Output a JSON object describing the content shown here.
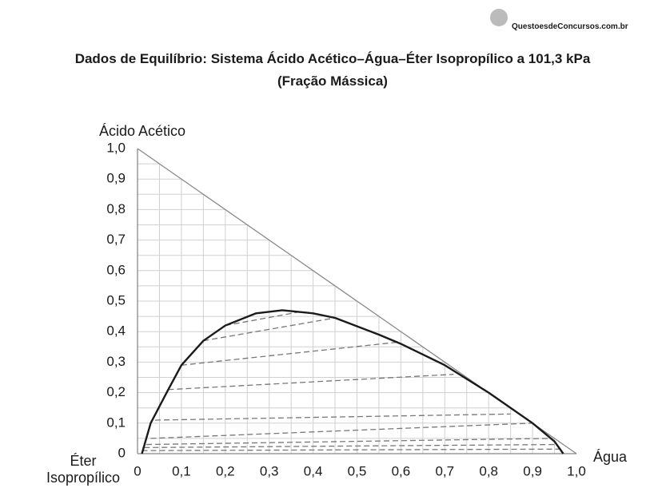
{
  "watermark": "QuestoesdeConcursos.com.br",
  "chart_data": {
    "type": "ternary",
    "title": "Dados de Equilíbrio: Sistema Ácido Acético–Água–Éter Isopropílico a 101,3 kPa",
    "subtitle": "(Fração Mássica)",
    "ylabel": "Ácido Acético",
    "xlabel": "Água",
    "origin_label": [
      "Éter",
      "Isopropílico"
    ],
    "xlim": [
      0,
      1
    ],
    "ylim": [
      0,
      1
    ],
    "xticks": [
      0,
      {
        "value": 0.1,
        "label": "0,1"
      },
      {
        "value": 0.2,
        "label": "0,2"
      },
      {
        "value": 0.3,
        "label": "0,3"
      },
      {
        "value": 0.4,
        "label": "0,4"
      },
      {
        "value": 0.5,
        "label": "0,5"
      },
      {
        "value": 0.6,
        "label": "0,6"
      },
      {
        "value": 0.7,
        "label": "0,7"
      },
      {
        "value": 0.8,
        "label": "0,8"
      },
      {
        "value": 0.9,
        "label": "0,9"
      },
      {
        "value": 1,
        "label": "1,0"
      }
    ],
    "yticks": [
      0,
      {
        "value": 0.1,
        "label": "0,1"
      },
      {
        "value": 0.2,
        "label": "0,2"
      },
      {
        "value": 0.3,
        "label": "0,3"
      },
      {
        "value": 0.4,
        "label": "0,4"
      },
      {
        "value": 0.5,
        "label": "0,5"
      },
      {
        "value": 0.6,
        "label": "0,6"
      },
      {
        "value": 0.7,
        "label": "0,7"
      },
      {
        "value": 0.8,
        "label": "0,8"
      },
      {
        "value": 0.9,
        "label": "0,9"
      },
      {
        "value": 1,
        "label": "1,0"
      }
    ],
    "grid": true,
    "grid_lines": [
      0.05,
      0.1,
      0.15,
      0.2,
      0.25,
      0.3,
      0.35,
      0.4,
      0.45,
      0.5,
      0.55,
      0.6,
      0.65,
      0.7,
      0.75,
      0.8,
      0.85,
      0.9,
      0.95
    ],
    "binodal": {
      "color": "#1a1a1a",
      "x": [
        0.01,
        0.03,
        0.07,
        0.1,
        0.15,
        0.2,
        0.27,
        0.33,
        0.4,
        0.45,
        0.55,
        0.6,
        0.7,
        0.8,
        0.9,
        0.95,
        0.97
      ],
      "y": [
        0,
        0.1,
        0.21,
        0.29,
        0.37,
        0.42,
        0.46,
        0.47,
        0.46,
        0.445,
        0.39,
        0.36,
        0.29,
        0.2,
        0.1,
        0.04,
        0
      ]
    },
    "tie_line_color": "#777777",
    "tie_lines": [
      {
        "x": [
          0.01,
          0.97
        ],
        "y": [
          0.01,
          0.015
        ]
      },
      {
        "x": [
          0.015,
          0.955
        ],
        "y": [
          0.02,
          0.03
        ]
      },
      {
        "x": [
          0.02,
          0.94
        ],
        "y": [
          0.03,
          0.05
        ]
      },
      {
        "x": [
          0.03,
          0.9
        ],
        "y": [
          0.05,
          0.1
        ]
      },
      {
        "x": [
          0.04,
          0.85
        ],
        "y": [
          0.11,
          0.13
        ]
      },
      {
        "x": [
          0.07,
          0.72
        ],
        "y": [
          0.21,
          0.26
        ]
      },
      {
        "x": [
          0.1,
          0.59
        ],
        "y": [
          0.29,
          0.365
        ]
      },
      {
        "x": [
          0.15,
          0.45
        ],
        "y": [
          0.37,
          0.445
        ]
      },
      {
        "x": [
          0.2,
          0.37
        ],
        "y": [
          0.42,
          0.465
        ]
      }
    ]
  }
}
